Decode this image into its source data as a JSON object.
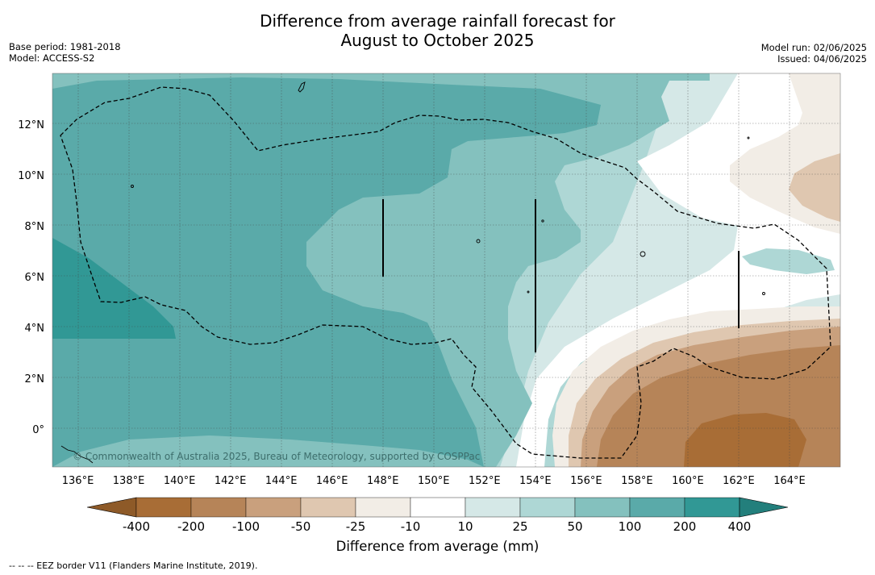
{
  "title_line1": "Difference from average rainfall forecast for",
  "title_line2": "August to October 2025",
  "base_period": "Base period: 1981-2018",
  "model": "Model: ACCESS-S2",
  "model_run": "Model run: 02/06/2025",
  "issued": "Issued: 04/06/2025",
  "copyright": "© Commonwealth of Australia 2025, Bureau of Meteorology, supported by COSPPac",
  "colorbar_label": "Difference from average (mm)",
  "footer_note": "--  --  -- EEZ border V11 (Flanders Marine Institute, 2019).",
  "lat_labels": [
    "12°N",
    "10°N",
    "8°N",
    "6°N",
    "4°N",
    "2°N",
    "0°"
  ],
  "lat_values": [
    12,
    10,
    8,
    6,
    4,
    2,
    0
  ],
  "lon_labels": [
    "136°E",
    "138°E",
    "140°E",
    "142°E",
    "144°E",
    "146°E",
    "148°E",
    "150°E",
    "152°E",
    "154°E",
    "156°E",
    "158°E",
    "160°E",
    "162°E",
    "164°E"
  ],
  "lon_values": [
    136,
    138,
    140,
    142,
    144,
    146,
    148,
    150,
    152,
    154,
    156,
    158,
    160,
    162,
    164
  ],
  "map_extent": {
    "lon_min": 135,
    "lon_max": 166,
    "lat_min": -1.5,
    "lat_max": 14
  },
  "colorbar": {
    "ticks": [
      "-400",
      "-200",
      "-100",
      "-50",
      "-25",
      "-10",
      "10",
      "25",
      "50",
      "100",
      "200",
      "400"
    ],
    "colors": [
      "#a86d36",
      "#b68458",
      "#c9a07d",
      "#dfc7b0",
      "#f2ede6",
      "#ffffff",
      "#d5e8e7",
      "#aed7d5",
      "#84c1be",
      "#5aaaa9",
      "#319895"
    ],
    "under_color": "#8e5a28",
    "over_color": "#237f7c"
  }
}
